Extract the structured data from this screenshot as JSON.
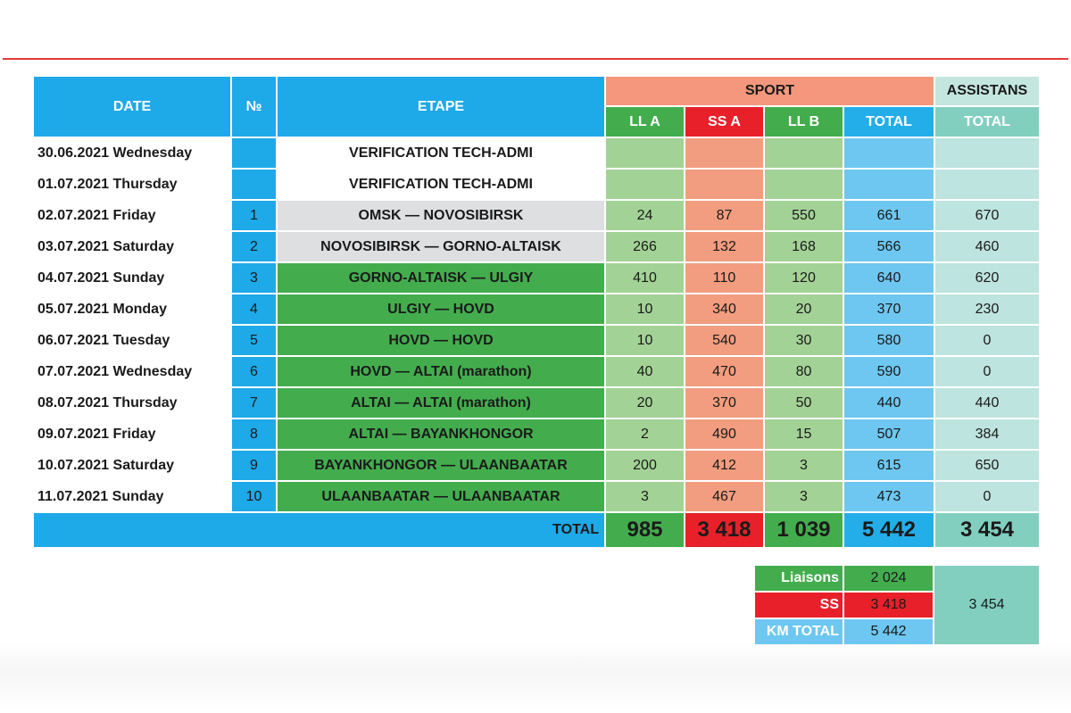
{
  "colors": {
    "header_blue": "#1ea9e8",
    "sport_header": "#f4977c",
    "assistans_header": "#c3e6de",
    "ll_green": "#43ad4e",
    "ss_red": "#e8202a",
    "total_blue": "#23aeea",
    "assist_total": "#82cfc0",
    "rule_red": "#e23b3b"
  },
  "headers": {
    "date": "DATE",
    "num": "№",
    "etape": "ETAPE",
    "sport": "SPORT",
    "assistans": "ASSISTANS",
    "ll_a": "LL A",
    "ss_a": "SS A",
    "ll_b": "LL B",
    "total": "TOTAL",
    "assist_total": "TOTAL"
  },
  "rows": [
    {
      "date": "30.06.2021 Wednesday",
      "num": "",
      "etape": "VERIFICATION TECH-ADMI",
      "ll_a": "",
      "ss_a": "",
      "ll_b": "",
      "total": "",
      "assist": ""
    },
    {
      "date": "01.07.2021 Thursday",
      "num": "",
      "etape": "VERIFICATION TECH-ADMI",
      "ll_a": "",
      "ss_a": "",
      "ll_b": "",
      "total": "",
      "assist": ""
    },
    {
      "date": "02.07.2021 Friday",
      "num": "1",
      "etape": "OMSK — NOVOSIBIRSK",
      "ll_a": "24",
      "ss_a": "87",
      "ll_b": "550",
      "total": "661",
      "assist": "670"
    },
    {
      "date": "03.07.2021 Saturday",
      "num": "2",
      "etape": "NOVOSIBIRSK — GORNO-ALTAISK",
      "ll_a": "266",
      "ss_a": "132",
      "ll_b": "168",
      "total": "566",
      "assist": "460"
    },
    {
      "date": "04.07.2021 Sunday",
      "num": "3",
      "etape": "GORNO-ALTAISK — ULGIY",
      "ll_a": "410",
      "ss_a": "110",
      "ll_b": "120",
      "total": "640",
      "assist": "620"
    },
    {
      "date": "05.07.2021 Monday",
      "num": "4",
      "etape": "ULGIY — HOVD",
      "ll_a": "10",
      "ss_a": "340",
      "ll_b": "20",
      "total": "370",
      "assist": "230"
    },
    {
      "date": "06.07.2021 Tuesday",
      "num": "5",
      "etape": "HOVD — HOVD",
      "ll_a": "10",
      "ss_a": "540",
      "ll_b": "30",
      "total": "580",
      "assist": "0"
    },
    {
      "date": "07.07.2021 Wednesday",
      "num": "6",
      "etape": "HOVD — ALTAI (marathon)",
      "ll_a": "40",
      "ss_a": "470",
      "ll_b": "80",
      "total": "590",
      "assist": "0"
    },
    {
      "date": "08.07.2021 Thursday",
      "num": "7",
      "etape": "ALTAI — ALTAI (marathon)",
      "ll_a": "20",
      "ss_a": "370",
      "ll_b": "50",
      "total": "440",
      "assist": "440"
    },
    {
      "date": "09.07.2021 Friday",
      "num": "8",
      "etape": "ALTAI — BAYANKHONGOR",
      "ll_a": "2",
      "ss_a": "490",
      "ll_b": "15",
      "total": "507",
      "assist": "384"
    },
    {
      "date": "10.07.2021 Saturday",
      "num": "9",
      "etape": "BAYANKHONGOR — ULAANBAATAR",
      "ll_a": "200",
      "ss_a": "412",
      "ll_b": "3",
      "total": "615",
      "assist": "650"
    },
    {
      "date": "11.07.2021 Sunday",
      "num": "10",
      "etape": "ULAANBAATAR — ULAANBAATAR",
      "ll_a": "3",
      "ss_a": "467",
      "ll_b": "3",
      "total": "473",
      "assist": "0"
    }
  ],
  "totals": {
    "label": "TOTAL",
    "ll_a": "985",
    "ss_a": "3 418",
    "ll_b": "1 039",
    "total": "5 442",
    "assist": "3 454"
  },
  "summary": {
    "liaisons_label": "Liaisons",
    "liaisons_value": "2 024",
    "ss_label": "SS",
    "ss_value": "3 418",
    "km_total_label": "KM TOTAL",
    "km_total_value": "5 442",
    "assist_value": "3 454"
  }
}
